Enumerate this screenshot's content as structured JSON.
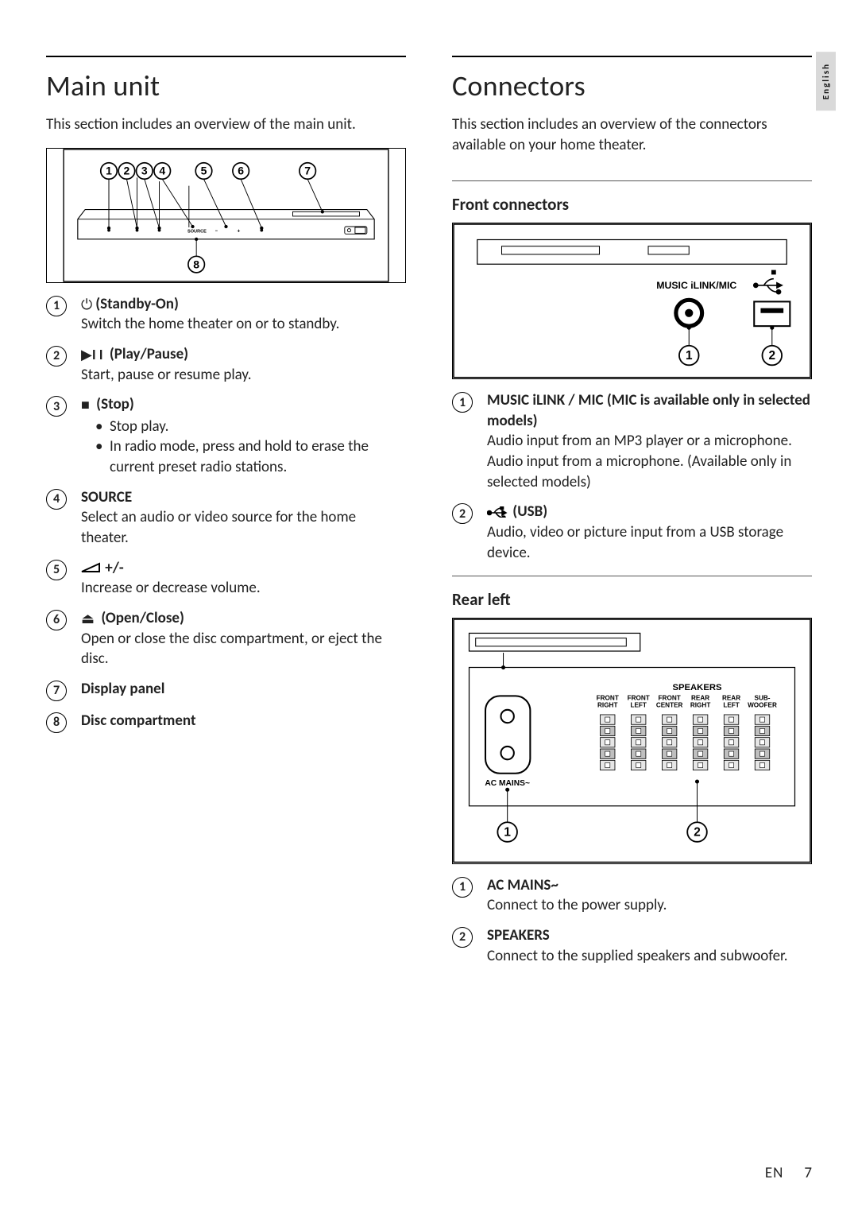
{
  "page": {
    "language_tab": "English",
    "footer_lang": "EN",
    "footer_page": "7"
  },
  "left": {
    "heading": "Main unit",
    "intro": "This section includes an overview of the main unit.",
    "diagram": {
      "callouts": [
        "1",
        "2",
        "3",
        "4",
        "5",
        "6",
        "7",
        "8"
      ],
      "label_source": "SOURCE"
    },
    "items": [
      {
        "num": "1",
        "icon": "power",
        "title_bold": "(Standby-On)",
        "desc": "Switch the home theater on or to standby."
      },
      {
        "num": "2",
        "icon": "playpause",
        "title_bold": "(Play/Pause)",
        "desc": "Start, pause or resume play."
      },
      {
        "num": "3",
        "icon": "stop",
        "title_bold": "(Stop)",
        "bullets": [
          "Stop play.",
          "In radio mode, press and hold to erase the current preset radio stations."
        ]
      },
      {
        "num": "4",
        "title_plain_bold": "SOURCE",
        "desc": "Select an audio or video source for the home theater."
      },
      {
        "num": "5",
        "icon": "volume",
        "title_bold": "+/-",
        "desc": "Increase or decrease volume."
      },
      {
        "num": "6",
        "icon": "eject",
        "title_bold": "(Open/Close)",
        "desc": "Open or close the disc compartment, or eject the disc."
      },
      {
        "num": "7",
        "title_plain_bold": "Display panel"
      },
      {
        "num": "8",
        "title_plain_bold": "Disc compartment"
      }
    ]
  },
  "right": {
    "heading": "Connectors",
    "intro": "This section includes an overview of the connectors available on your home theater.",
    "front": {
      "heading": "Front connectors",
      "diagram": {
        "label_music": "MUSIC iLINK/MIC",
        "callouts": [
          "1",
          "2"
        ]
      },
      "items": [
        {
          "num": "1",
          "title_bold": "MUSIC iLINK / MIC (MIC is available only in selected models)",
          "desc": "Audio input from an MP3 player or a microphone.",
          "desc2": "Audio input from a microphone. (Available only in selected models)"
        },
        {
          "num": "2",
          "icon": "usb",
          "title_bold": "(USB)",
          "desc": "Audio, video or picture input from a USB storage device."
        }
      ]
    },
    "rear": {
      "heading": "Rear left",
      "diagram": {
        "label_speakers": "SPEAKERS",
        "label_ac": "AC MAINS~",
        "speaker_cols": [
          {
            "t": "FRONT",
            "b": "RIGHT"
          },
          {
            "t": "FRONT",
            "b": "LEFT"
          },
          {
            "t": "FRONT",
            "b": "CENTER"
          },
          {
            "t": "REAR",
            "b": "RIGHT"
          },
          {
            "t": "REAR",
            "b": "LEFT"
          },
          {
            "t": "SUB-",
            "b": "WOOFER"
          }
        ],
        "callouts": [
          "1",
          "2"
        ]
      },
      "items": [
        {
          "num": "1",
          "title_plain_bold": "AC MAINS~",
          "desc": "Connect to the power supply."
        },
        {
          "num": "2",
          "title_plain_bold": "SPEAKERS",
          "desc": "Connect to the supplied speakers and subwoofer."
        }
      ]
    }
  },
  "colors": {
    "text": "#222222",
    "rule": "#000000",
    "tab_bg": "#d9d9d9"
  }
}
